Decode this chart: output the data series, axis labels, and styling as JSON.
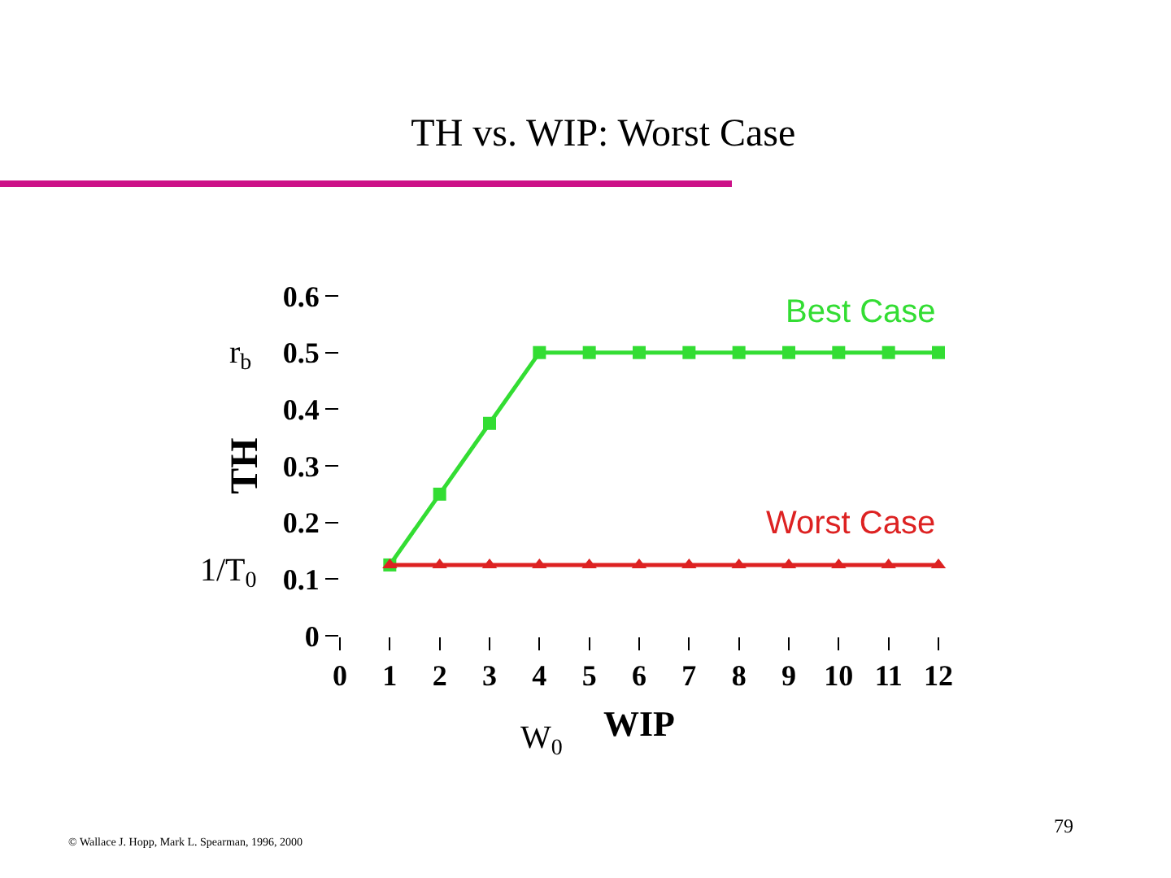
{
  "chart_data": {
    "type": "line",
    "title": "TH vs. WIP: Worst Case",
    "xlabel": "WIP",
    "ylabel": "TH",
    "x": [
      1,
      2,
      3,
      4,
      5,
      6,
      7,
      8,
      9,
      10,
      11,
      12
    ],
    "series": [
      {
        "name": "Best Case",
        "color": "#33dd33",
        "marker": "square",
        "values": [
          0.125,
          0.25,
          0.375,
          0.5,
          0.5,
          0.5,
          0.5,
          0.5,
          0.5,
          0.5,
          0.5,
          0.5
        ]
      },
      {
        "name": "Worst Case",
        "color": "#dd2222",
        "marker": "triangle",
        "values": [
          0.125,
          0.125,
          0.125,
          0.125,
          0.125,
          0.125,
          0.125,
          0.125,
          0.125,
          0.125,
          0.125,
          0.125
        ]
      }
    ],
    "xlim": [
      0,
      12
    ],
    "xticks": [
      0,
      1,
      2,
      3,
      4,
      5,
      6,
      7,
      8,
      9,
      10,
      11,
      12
    ],
    "ylim": [
      0,
      0.6
    ],
    "yticks": [
      0,
      0.1,
      0.2,
      0.3,
      0.4,
      0.5,
      0.6
    ],
    "grid": false,
    "legend": false,
    "line_style": "solid",
    "annotations": [
      "r$_{b}$",
      "1/T$_{0}$",
      "W$_{0}$",
      "© Wallace J. Hopp, Mark L. Spearman, 1996, 2000",
      "79"
    ]
  }
}
